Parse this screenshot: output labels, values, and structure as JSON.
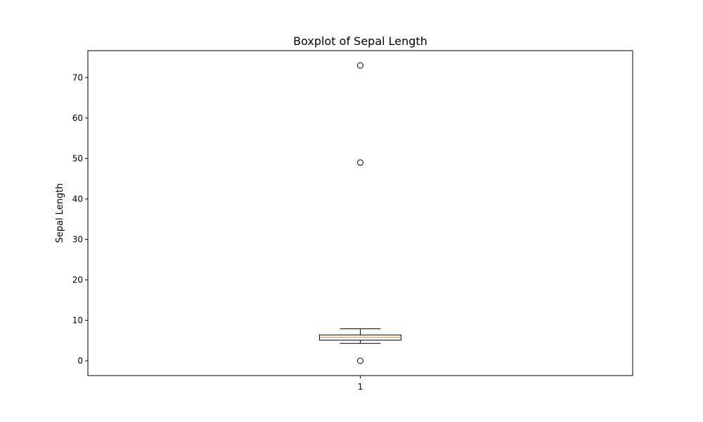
{
  "chart_data": {
    "type": "box",
    "title": "Boxplot of Sepal Length",
    "xlabel": "",
    "ylabel": "Sepal Length",
    "categories": [
      "1"
    ],
    "ylim": [
      -3.65,
      76.65
    ],
    "yticks": [
      0,
      10,
      20,
      30,
      40,
      50,
      60,
      70
    ],
    "grid": false,
    "boxes": [
      {
        "category": "1",
        "whisker_low": 4.3,
        "q1": 5.1,
        "median": 5.8,
        "q3": 6.4,
        "whisker_high": 7.9,
        "outliers": [
          73,
          49,
          0
        ]
      }
    ]
  },
  "colors": {
    "box_edge": "#000000",
    "median": "#ff7f0e",
    "outlier_edge": "#000000"
  }
}
